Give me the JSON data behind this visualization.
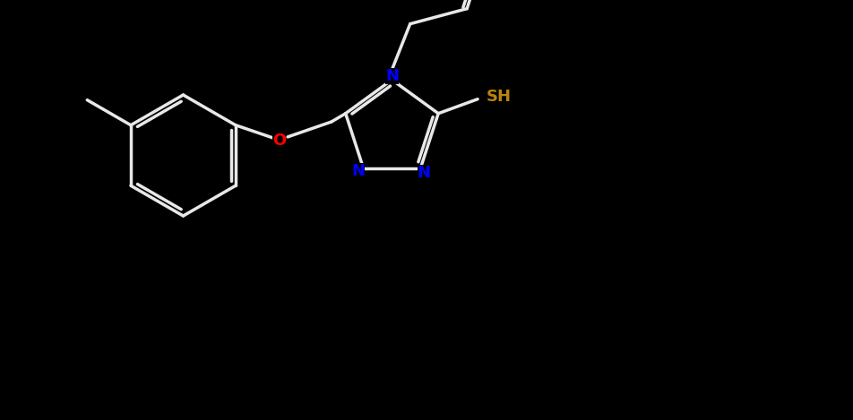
{
  "bg_color": "#000000",
  "bond_color": "#ffffff",
  "N_color": "#0000FF",
  "O_color": "#FF0000",
  "S_color": "#B8860B",
  "line_width": 2.5,
  "figsize": [
    9.53,
    4.69
  ],
  "dpi": 100,
  "xlim": [
    0,
    10
  ],
  "ylim": [
    0,
    5
  ],
  "hex_r": 0.72,
  "tri_r": 0.58,
  "font_size": 13
}
